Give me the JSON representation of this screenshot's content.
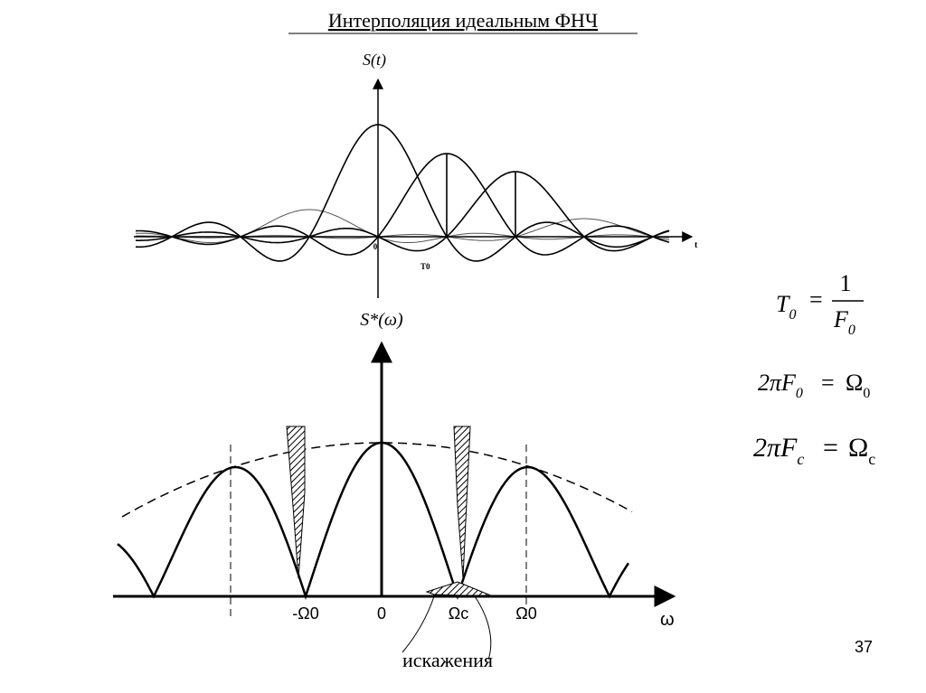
{
  "title": "Интерполяция идеальным ФНЧ",
  "top_plot": {
    "y_label": "S(t)",
    "origin_label": "0",
    "x_label": "t",
    "period_label": "T0"
  },
  "bottom_plot": {
    "y_label": "S*(ω)",
    "tick_labels": [
      "-Ω0",
      "0",
      "Ωc",
      "Ω0"
    ],
    "x_label": "ω",
    "annotation": "искажения"
  },
  "formulas": [
    {
      "left": "T",
      "left_sub": "0",
      "equals": "=",
      "numerator": "1",
      "denominator": "F",
      "denominator_sub": "0"
    },
    {
      "left": "2πF",
      "left_sub": "0",
      "equals": "=",
      "right": "Ω",
      "right_sub": "0"
    },
    {
      "left": "2πF",
      "left_sub": "c",
      "equals": "=",
      "right": "Ω",
      "right_sub": "c"
    }
  ],
  "page_number": "37"
}
